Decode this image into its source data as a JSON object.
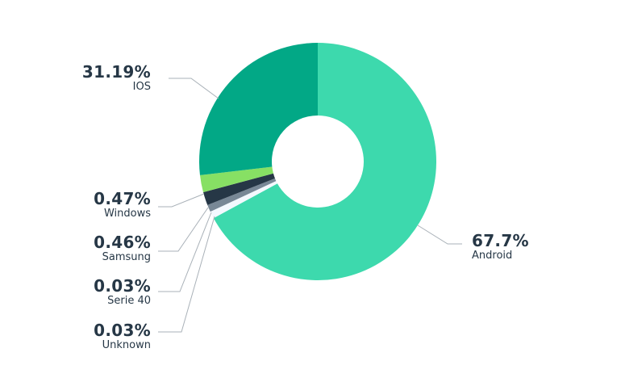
{
  "chart_data": {
    "type": "pie",
    "variant": "donut",
    "title": "",
    "start_angle_deg": 0,
    "direction": "clockwise",
    "center": [
      394,
      200
    ],
    "outer_radius": 147,
    "inner_radius": 57,
    "slices": [
      {
        "name": "Android",
        "value": 67.7,
        "label": "67.7%",
        "color": "#3dd9ad",
        "start": 0,
        "end": 241.5
      },
      {
        "name": "Unknown",
        "value": 0.03,
        "label": "0.03%",
        "color": "#f3f9ff",
        "start": 241.5,
        "end": 245
      },
      {
        "name": "Serie 40",
        "value": 0.03,
        "label": "0.03%",
        "color": "#788896",
        "start": 245,
        "end": 248.5
      },
      {
        "name": "Samsung",
        "value": 0.46,
        "label": "0.46%",
        "color": "#263746",
        "start": 248.5,
        "end": 255
      },
      {
        "name": "Windows",
        "value": 0.47,
        "label": "0.47%",
        "color": "#87e064",
        "start": 255,
        "end": 263.4
      },
      {
        "name": "IOS",
        "value": 31.19,
        "label": "31.19%",
        "color": "#02a886",
        "start": 263.4,
        "end": 360
      }
    ],
    "labels": [
      {
        "name": "IOS",
        "pct": "31.19%",
        "side": "left",
        "box": [
          100,
          78
        ],
        "line": [
          [
            209,
            97
          ],
          [
            237,
            97
          ],
          [
            271,
            122
          ]
        ]
      },
      {
        "name": "Windows",
        "pct": "0.47%",
        "side": "left",
        "box": [
          100,
          235
        ],
        "line": [
          [
            196,
            256
          ],
          [
            213,
            256
          ],
          [
            253,
            240
          ]
        ]
      },
      {
        "name": "Samsung",
        "pct": "0.46%",
        "side": "left",
        "box": [
          100,
          289
        ],
        "line": [
          [
            196,
            311
          ],
          [
            221,
            311
          ],
          [
            258,
            257
          ]
        ]
      },
      {
        "name": "Serie 40",
        "pct": "0.03%",
        "side": "left",
        "box": [
          100,
          343
        ],
        "line": [
          [
            196,
            361
          ],
          [
            223,
            361
          ],
          [
            262,
            263
          ]
        ]
      },
      {
        "name": "Unknown",
        "pct": "0.03%",
        "side": "left",
        "box": [
          100,
          398
        ],
        "line": [
          [
            196,
            411
          ],
          [
            225,
            411
          ],
          [
            266,
            268
          ]
        ]
      },
      {
        "name": "Android",
        "pct": "67.7%",
        "side": "right",
        "box": [
          585,
          287
        ],
        "line": [
          [
            518,
            279
          ],
          [
            555,
            302
          ],
          [
            573,
            302
          ]
        ]
      }
    ],
    "legend": null,
    "leader_line_color": "#a9b1b8",
    "text_color": "#263746"
  }
}
